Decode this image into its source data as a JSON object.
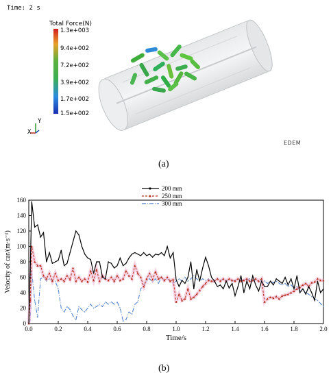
{
  "simulation": {
    "time_label": "Time: 2 s",
    "colorbar_title": "Total Force(N)",
    "colorbar_ticks": [
      "1.3e+003",
      "9.4e+002",
      "7.2e+002",
      "3.9e+002",
      "1.7e+002",
      "1.5e+002"
    ],
    "axis_labels": {
      "x": "X",
      "y": "Y"
    },
    "software_logo": "EDEM"
  },
  "captions": {
    "a": "(a)",
    "b": "(b)"
  },
  "chart_data": {
    "type": "line",
    "title": "",
    "xlabel": "Time/s",
    "ylabel": "Velocity of car/(m·s⁻¹)",
    "xlim": [
      0,
      2.0
    ],
    "ylim": [
      0,
      160
    ],
    "xticks": [
      0.0,
      0.2,
      0.4,
      0.6,
      0.8,
      1.0,
      1.2,
      1.4,
      1.6,
      1.8,
      2.0
    ],
    "xtick_labels": [
      "0.0",
      "0.2",
      "0.4",
      "0.6",
      "0.8",
      "1.0",
      "1.2",
      "1.4",
      "1.6",
      "1.8",
      "2.0"
    ],
    "yticks": [
      0,
      20,
      40,
      60,
      80,
      100,
      120,
      140,
      160
    ],
    "ytick_labels": [
      "0",
      "20",
      "40",
      "60",
      "80",
      "100",
      "120",
      "140",
      "160"
    ],
    "grid": false,
    "legend_position": "top-center",
    "series": [
      {
        "name": "200 mm",
        "color": "#000000",
        "style": "solid",
        "points": [
          [
            0,
            0
          ],
          [
            0.01,
            70
          ],
          [
            0.02,
            158
          ],
          [
            0.04,
            125
          ],
          [
            0.06,
            128
          ],
          [
            0.08,
            112
          ],
          [
            0.1,
            118
          ],
          [
            0.12,
            80
          ],
          [
            0.14,
            92
          ],
          [
            0.16,
            78
          ],
          [
            0.18,
            80
          ],
          [
            0.2,
            82
          ],
          [
            0.22,
            95
          ],
          [
            0.24,
            75
          ],
          [
            0.26,
            78
          ],
          [
            0.28,
            92
          ],
          [
            0.3,
            106
          ],
          [
            0.32,
            120
          ],
          [
            0.34,
            115
          ],
          [
            0.36,
            100
          ],
          [
            0.38,
            90
          ],
          [
            0.4,
            85
          ],
          [
            0.42,
            83
          ],
          [
            0.44,
            65
          ],
          [
            0.46,
            80
          ],
          [
            0.48,
            80
          ],
          [
            0.5,
            60
          ],
          [
            0.52,
            58
          ],
          [
            0.54,
            80
          ],
          [
            0.56,
            78
          ],
          [
            0.58,
            72
          ],
          [
            0.6,
            75
          ],
          [
            0.62,
            85
          ],
          [
            0.64,
            75
          ],
          [
            0.66,
            78
          ],
          [
            0.68,
            85
          ],
          [
            0.7,
            90
          ],
          [
            0.72,
            92
          ],
          [
            0.74,
            90
          ],
          [
            0.76,
            88
          ],
          [
            0.78,
            92
          ],
          [
            0.8,
            88
          ],
          [
            0.82,
            90
          ],
          [
            0.84,
            86
          ],
          [
            0.86,
            90
          ],
          [
            0.88,
            89
          ],
          [
            0.9,
            92
          ],
          [
            0.92,
            88
          ],
          [
            0.94,
            100
          ],
          [
            0.96,
            85
          ],
          [
            0.98,
            92
          ],
          [
            1.0,
            57
          ],
          [
            1.02,
            48
          ],
          [
            1.04,
            56
          ],
          [
            1.06,
            52
          ],
          [
            1.08,
            60
          ],
          [
            1.1,
            80
          ],
          [
            1.12,
            45
          ],
          [
            1.14,
            70
          ],
          [
            1.16,
            55
          ],
          [
            1.18,
            72
          ],
          [
            1.2,
            86
          ],
          [
            1.22,
            75
          ],
          [
            1.24,
            60
          ],
          [
            1.26,
            55
          ],
          [
            1.28,
            48
          ],
          [
            1.3,
            50
          ],
          [
            1.32,
            45
          ],
          [
            1.34,
            55
          ],
          [
            1.36,
            46
          ],
          [
            1.38,
            52
          ],
          [
            1.4,
            36
          ],
          [
            1.42,
            48
          ],
          [
            1.44,
            62
          ],
          [
            1.46,
            40
          ],
          [
            1.48,
            55
          ],
          [
            1.5,
            45
          ],
          [
            1.52,
            62
          ],
          [
            1.54,
            50
          ],
          [
            1.56,
            42
          ],
          [
            1.58,
            55
          ],
          [
            1.6,
            48
          ],
          [
            1.62,
            48
          ],
          [
            1.64,
            55
          ],
          [
            1.66,
            50
          ],
          [
            1.68,
            58
          ],
          [
            1.7,
            55
          ],
          [
            1.72,
            52
          ],
          [
            1.74,
            60
          ],
          [
            1.76,
            50
          ],
          [
            1.78,
            58
          ],
          [
            1.8,
            45
          ],
          [
            1.82,
            62
          ],
          [
            1.84,
            40
          ],
          [
            1.86,
            45
          ],
          [
            1.88,
            38
          ],
          [
            1.9,
            48
          ],
          [
            1.92,
            40
          ],
          [
            1.94,
            30
          ],
          [
            1.96,
            55
          ],
          [
            1.98,
            40
          ],
          [
            2.0,
            45
          ]
        ]
      },
      {
        "name": "250 mm",
        "color": "#b5321e",
        "style": "dashed",
        "points": [
          [
            0,
            0
          ],
          [
            0.01,
            30
          ],
          [
            0.02,
            100
          ],
          [
            0.04,
            80
          ],
          [
            0.06,
            75
          ],
          [
            0.08,
            75
          ],
          [
            0.1,
            62
          ],
          [
            0.12,
            58
          ],
          [
            0.14,
            65
          ],
          [
            0.16,
            55
          ],
          [
            0.18,
            65
          ],
          [
            0.2,
            56
          ],
          [
            0.22,
            58
          ],
          [
            0.24,
            55
          ],
          [
            0.26,
            62
          ],
          [
            0.28,
            57
          ],
          [
            0.3,
            72
          ],
          [
            0.32,
            55
          ],
          [
            0.34,
            60
          ],
          [
            0.36,
            55
          ],
          [
            0.38,
            58
          ],
          [
            0.4,
            54
          ],
          [
            0.42,
            68
          ],
          [
            0.44,
            56
          ],
          [
            0.46,
            70
          ],
          [
            0.48,
            55
          ],
          [
            0.5,
            62
          ],
          [
            0.52,
            58
          ],
          [
            0.54,
            56
          ],
          [
            0.56,
            60
          ],
          [
            0.58,
            55
          ],
          [
            0.6,
            62
          ],
          [
            0.62,
            56
          ],
          [
            0.64,
            58
          ],
          [
            0.66,
            68
          ],
          [
            0.68,
            62
          ],
          [
            0.7,
            58
          ],
          [
            0.72,
            75
          ],
          [
            0.74,
            65
          ],
          [
            0.76,
            60
          ],
          [
            0.78,
            48
          ],
          [
            0.8,
            58
          ],
          [
            0.82,
            65
          ],
          [
            0.84,
            57
          ],
          [
            0.86,
            67
          ],
          [
            0.88,
            58
          ],
          [
            0.9,
            60
          ],
          [
            0.92,
            56
          ],
          [
            0.94,
            60
          ],
          [
            0.96,
            55
          ],
          [
            0.98,
            57
          ],
          [
            1.0,
            28
          ],
          [
            1.02,
            38
          ],
          [
            1.04,
            30
          ],
          [
            1.06,
            32
          ],
          [
            1.08,
            45
          ],
          [
            1.1,
            32
          ],
          [
            1.12,
            34
          ],
          [
            1.14,
            38
          ],
          [
            1.16,
            43
          ],
          [
            1.18,
            48
          ],
          [
            1.2,
            52
          ],
          [
            1.22,
            56
          ],
          [
            1.24,
            55
          ],
          [
            1.26,
            55
          ],
          [
            1.28,
            58
          ],
          [
            1.3,
            55
          ],
          [
            1.32,
            58
          ],
          [
            1.34,
            55
          ],
          [
            1.36,
            58
          ],
          [
            1.38,
            56
          ],
          [
            1.4,
            55
          ],
          [
            1.42,
            58
          ],
          [
            1.44,
            55
          ],
          [
            1.46,
            56
          ],
          [
            1.48,
            58
          ],
          [
            1.5,
            55
          ],
          [
            1.52,
            56
          ],
          [
            1.54,
            58
          ],
          [
            1.56,
            55
          ],
          [
            1.58,
            58
          ],
          [
            1.6,
            28
          ],
          [
            1.62,
            32
          ],
          [
            1.64,
            34
          ],
          [
            1.66,
            33
          ],
          [
            1.68,
            35
          ],
          [
            1.7,
            32
          ],
          [
            1.72,
            36
          ],
          [
            1.74,
            37
          ],
          [
            1.76,
            38
          ],
          [
            1.78,
            40
          ],
          [
            1.8,
            42
          ],
          [
            1.82,
            45
          ],
          [
            1.84,
            47
          ],
          [
            1.86,
            50
          ],
          [
            1.88,
            52
          ],
          [
            1.9,
            48
          ],
          [
            1.92,
            53
          ],
          [
            1.94,
            54
          ],
          [
            1.96,
            58
          ],
          [
            1.98,
            56
          ],
          [
            2.0,
            56
          ]
        ]
      },
      {
        "name": "300 mm",
        "color": "#4a7cc8",
        "style": "dashdot",
        "points": [
          [
            0,
            0
          ],
          [
            0.01,
            5
          ],
          [
            0.02,
            68
          ],
          [
            0.04,
            30
          ],
          [
            0.06,
            8
          ],
          [
            0.08,
            58
          ],
          [
            0.1,
            60
          ],
          [
            0.12,
            55
          ],
          [
            0.14,
            58
          ],
          [
            0.16,
            55
          ],
          [
            0.18,
            55
          ],
          [
            0.2,
            45
          ],
          [
            0.22,
            20
          ],
          [
            0.24,
            15
          ],
          [
            0.26,
            22
          ],
          [
            0.28,
            18
          ],
          [
            0.3,
            10
          ],
          [
            0.32,
            5
          ],
          [
            0.34,
            22
          ],
          [
            0.36,
            18
          ],
          [
            0.38,
            15
          ],
          [
            0.4,
            20
          ],
          [
            0.42,
            25
          ],
          [
            0.44,
            20
          ],
          [
            0.46,
            22
          ],
          [
            0.48,
            25
          ],
          [
            0.5,
            22
          ],
          [
            0.52,
            28
          ],
          [
            0.54,
            25
          ],
          [
            0.56,
            28
          ],
          [
            0.58,
            25
          ],
          [
            0.6,
            28
          ],
          [
            0.62,
            20
          ],
          [
            0.64,
            3
          ],
          [
            0.66,
            5
          ],
          [
            0.68,
            15
          ],
          [
            0.7,
            12
          ],
          [
            0.72,
            25
          ],
          [
            0.74,
            28
          ],
          [
            0.76,
            45
          ],
          [
            0.78,
            50
          ],
          [
            0.8,
            55
          ],
          [
            0.82,
            58
          ],
          [
            0.84,
            54
          ],
          [
            0.86,
            58
          ],
          [
            0.88,
            52
          ],
          [
            0.9,
            60
          ],
          [
            0.92,
            56
          ],
          [
            0.94,
            58
          ],
          [
            0.96,
            55
          ],
          [
            0.98,
            52
          ],
          [
            1.0,
            55
          ],
          [
            1.02,
            58
          ],
          [
            1.04,
            55
          ],
          [
            1.06,
            60
          ],
          [
            1.08,
            55
          ],
          [
            1.1,
            58
          ],
          [
            1.12,
            62
          ],
          [
            1.14,
            58
          ],
          [
            1.16,
            55
          ],
          [
            1.18,
            58
          ],
          [
            1.2,
            56
          ],
          [
            1.22,
            58
          ],
          [
            1.24,
            54
          ],
          [
            1.26,
            55
          ],
          [
            1.28,
            58
          ],
          [
            1.3,
            56
          ],
          [
            1.32,
            58
          ],
          [
            1.34,
            55
          ],
          [
            1.36,
            57
          ],
          [
            1.38,
            55
          ],
          [
            1.4,
            56
          ],
          [
            1.42,
            58
          ],
          [
            1.44,
            55
          ],
          [
            1.46,
            57
          ],
          [
            1.48,
            56
          ],
          [
            1.5,
            58
          ],
          [
            1.52,
            55
          ],
          [
            1.54,
            57
          ],
          [
            1.56,
            54
          ],
          [
            1.58,
            56
          ],
          [
            1.6,
            55
          ],
          [
            1.62,
            52
          ],
          [
            1.64,
            55
          ],
          [
            1.66,
            53
          ],
          [
            1.68,
            55
          ],
          [
            1.7,
            52
          ],
          [
            1.72,
            50
          ],
          [
            1.74,
            52
          ],
          [
            1.76,
            48
          ],
          [
            1.78,
            50
          ],
          [
            1.8,
            46
          ],
          [
            1.82,
            48
          ],
          [
            1.84,
            43
          ],
          [
            1.86,
            45
          ],
          [
            1.88,
            40
          ],
          [
            1.9,
            38
          ],
          [
            1.92,
            35
          ],
          [
            1.94,
            32
          ],
          [
            1.96,
            30
          ],
          [
            1.98,
            26
          ],
          [
            2.0,
            22
          ]
        ]
      }
    ]
  }
}
